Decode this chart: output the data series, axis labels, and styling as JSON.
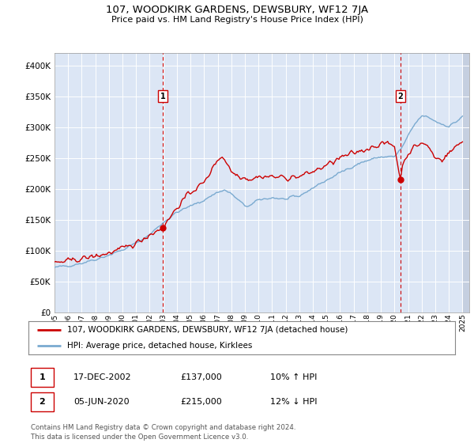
{
  "title": "107, WOODKIRK GARDENS, DEWSBURY, WF12 7JA",
  "subtitle": "Price paid vs. HM Land Registry's House Price Index (HPI)",
  "legend_line1": "107, WOODKIRK GARDENS, DEWSBURY, WF12 7JA (detached house)",
  "legend_line2": "HPI: Average price, detached house, Kirklees",
  "annotation1_label": "1",
  "annotation1_date": "17-DEC-2002",
  "annotation1_price": "£137,000",
  "annotation1_hpi": "10% ↑ HPI",
  "annotation2_label": "2",
  "annotation2_date": "05-JUN-2020",
  "annotation2_price": "£215,000",
  "annotation2_hpi": "12% ↓ HPI",
  "footer": "Contains HM Land Registry data © Crown copyright and database right 2024.\nThis data is licensed under the Open Government Licence v3.0.",
  "ylim": [
    0,
    420000
  ],
  "yticks": [
    0,
    50000,
    100000,
    150000,
    200000,
    250000,
    300000,
    350000,
    400000
  ],
  "background_color": "#dce6f5",
  "hatch_color": "#c5cfe0",
  "red_line_color": "#cc0000",
  "blue_line_color": "#7aaad0",
  "vline_color": "#cc0000",
  "marker1_x": 2002.96,
  "marker1_y": 137000,
  "marker2_x": 2020.43,
  "marker2_y": 215000,
  "xmin": 1995,
  "xmax": 2025.5
}
